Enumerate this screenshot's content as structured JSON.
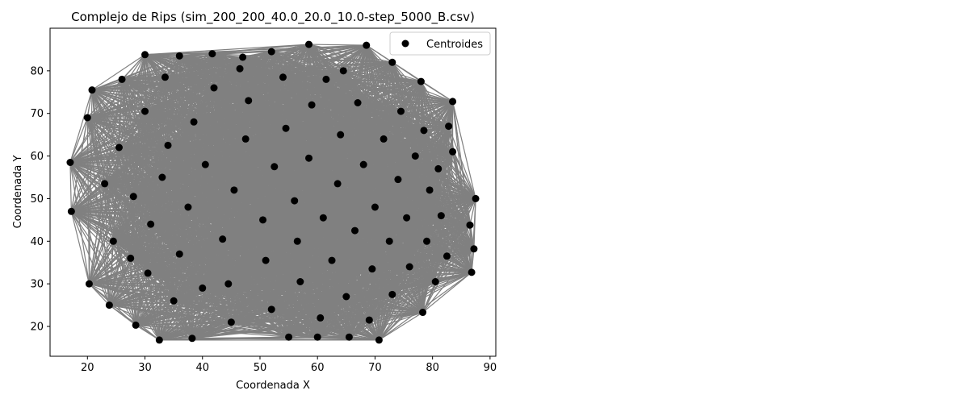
{
  "chart_data": {
    "type": "scatter",
    "title": "Complejo de Rips (sim_200_200_40.0_20.0_10.0-step_5000_B.csv)",
    "xlabel": "Coordenada X",
    "ylabel": "Coordenada Y",
    "xlim": [
      13.5,
      91
    ],
    "ylim": [
      13,
      90
    ],
    "xticks": [
      20,
      30,
      40,
      50,
      60,
      70,
      80,
      90
    ],
    "yticks": [
      20,
      30,
      40,
      50,
      60,
      70,
      80
    ],
    "grid": false,
    "legend": {
      "entries": [
        "Centroides"
      ],
      "placement": "top-right"
    },
    "edge_color": "#808080",
    "point_color": "#000000",
    "series": [
      {
        "name": "Centroides",
        "points": [
          [
            30.0,
            83.8
          ],
          [
            36.0,
            83.5
          ],
          [
            41.7,
            84.0
          ],
          [
            47.0,
            83.2
          ],
          [
            52.0,
            84.5
          ],
          [
            58.5,
            86.2
          ],
          [
            68.5,
            86.0
          ],
          [
            73.0,
            82.0
          ],
          [
            78.0,
            77.5
          ],
          [
            83.5,
            72.8
          ],
          [
            82.8,
            67.0
          ],
          [
            83.5,
            61.0
          ],
          [
            87.5,
            50.0
          ],
          [
            86.5,
            43.8
          ],
          [
            87.2,
            38.2
          ],
          [
            86.8,
            32.7
          ],
          [
            78.3,
            23.3
          ],
          [
            70.7,
            16.8
          ],
          [
            65.5,
            17.5
          ],
          [
            60.0,
            17.5
          ],
          [
            55.0,
            17.5
          ],
          [
            38.2,
            17.2
          ],
          [
            32.5,
            16.8
          ],
          [
            28.4,
            20.3
          ],
          [
            23.8,
            25.0
          ],
          [
            20.3,
            30.0
          ],
          [
            17.2,
            47.0
          ],
          [
            17.0,
            58.5
          ],
          [
            20.0,
            69.0
          ],
          [
            20.8,
            75.5
          ],
          [
            26.0,
            78.0
          ],
          [
            24.5,
            40.0
          ],
          [
            28.0,
            50.5
          ],
          [
            25.5,
            62.0
          ],
          [
            30.0,
            70.5
          ],
          [
            34.0,
            62.5
          ],
          [
            33.0,
            55.0
          ],
          [
            31.0,
            44.0
          ],
          [
            30.5,
            32.5
          ],
          [
            35.0,
            26.0
          ],
          [
            36.0,
            37.0
          ],
          [
            37.5,
            48.0
          ],
          [
            38.5,
            68.0
          ],
          [
            40.5,
            58.0
          ],
          [
            42.0,
            76.0
          ],
          [
            43.5,
            40.5
          ],
          [
            44.5,
            30.0
          ],
          [
            45.0,
            21.0
          ],
          [
            45.5,
            52.0
          ],
          [
            47.5,
            64.0
          ],
          [
            48.0,
            73.0
          ],
          [
            50.5,
            45.0
          ],
          [
            51.0,
            35.5
          ],
          [
            52.0,
            24.0
          ],
          [
            52.5,
            57.5
          ],
          [
            54.0,
            78.5
          ],
          [
            54.5,
            66.5
          ],
          [
            56.0,
            49.5
          ],
          [
            56.5,
            40.0
          ],
          [
            57.0,
            30.5
          ],
          [
            58.5,
            59.5
          ],
          [
            59.0,
            72.0
          ],
          [
            60.5,
            22.0
          ],
          [
            61.0,
            45.5
          ],
          [
            61.5,
            78.0
          ],
          [
            62.5,
            35.5
          ],
          [
            63.5,
            53.5
          ],
          [
            64.0,
            65.0
          ],
          [
            65.0,
            27.0
          ],
          [
            66.5,
            42.5
          ],
          [
            67.0,
            72.5
          ],
          [
            68.0,
            58.0
          ],
          [
            69.0,
            21.5
          ],
          [
            69.5,
            33.5
          ],
          [
            70.0,
            48.0
          ],
          [
            71.5,
            64.0
          ],
          [
            72.5,
            40.0
          ],
          [
            73.0,
            27.5
          ],
          [
            74.0,
            54.5
          ],
          [
            74.5,
            70.5
          ],
          [
            75.5,
            45.5
          ],
          [
            76.0,
            34.0
          ],
          [
            77.0,
            60.0
          ],
          [
            78.5,
            66.0
          ],
          [
            79.0,
            40.0
          ],
          [
            79.5,
            52.0
          ],
          [
            80.5,
            30.5
          ],
          [
            81.0,
            57.0
          ],
          [
            81.5,
            46.0
          ],
          [
            82.5,
            36.5
          ],
          [
            33.5,
            78.5
          ],
          [
            27.5,
            36.0
          ],
          [
            23.0,
            53.5
          ],
          [
            40.0,
            29.0
          ],
          [
            46.5,
            80.5
          ],
          [
            64.5,
            80.0
          ]
        ]
      }
    ]
  }
}
